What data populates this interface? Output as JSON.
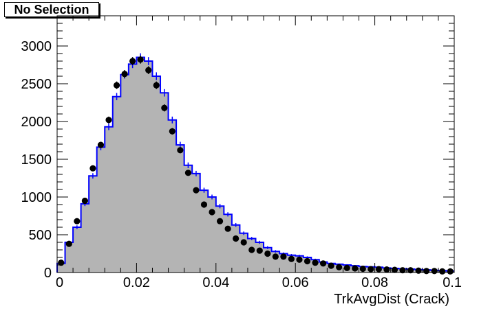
{
  "selection_label": "No Selection",
  "chart_data": {
    "type": "bar",
    "xlabel": "TrkAvgDist (Crack)",
    "ylabel": "",
    "xlim": [
      0,
      0.1
    ],
    "ylim": [
      0,
      3400
    ],
    "x_ticks": [
      0,
      0.02,
      0.04,
      0.06,
      0.08,
      0.1
    ],
    "x_tick_labels": [
      "0",
      "0.02",
      "0.04",
      "0.06",
      "0.08",
      "0.1"
    ],
    "y_ticks": [
      0,
      500,
      1000,
      1500,
      2000,
      2500,
      3000
    ],
    "y_tick_labels": [
      "0",
      "500",
      "1000",
      "1500",
      "2000",
      "2500",
      "3000"
    ],
    "grid": false,
    "bin_width": 0.002,
    "bin_centers": [
      0.001,
      0.003,
      0.005,
      0.007,
      0.009,
      0.011,
      0.013,
      0.015,
      0.017,
      0.019,
      0.021,
      0.023,
      0.025,
      0.027,
      0.029,
      0.031,
      0.033,
      0.035,
      0.037,
      0.039,
      0.041,
      0.043,
      0.045,
      0.047,
      0.049,
      0.051,
      0.053,
      0.055,
      0.057,
      0.059,
      0.061,
      0.063,
      0.065,
      0.067,
      0.069,
      0.071,
      0.073,
      0.075,
      0.077,
      0.079,
      0.081,
      0.083,
      0.085,
      0.087,
      0.089,
      0.091,
      0.093,
      0.095,
      0.097,
      0.099
    ],
    "series": [
      {
        "style": "filled-histogram",
        "fill_color": "#b4b4b4",
        "line_color": "#0000ff",
        "values": [
          120,
          400,
          600,
          910,
          1280,
          1660,
          1930,
          2330,
          2620,
          2760,
          2850,
          2800,
          2600,
          2380,
          2020,
          1690,
          1420,
          1310,
          1090,
          1000,
          880,
          770,
          630,
          520,
          450,
          400,
          330,
          280,
          250,
          230,
          220,
          200,
          170,
          140,
          120,
          110,
          100,
          90,
          80,
          75,
          70,
          60,
          55,
          50,
          45,
          40,
          35,
          30,
          25,
          20
        ]
      },
      {
        "style": "markers",
        "marker_color": "#000000",
        "values": [
          130,
          380,
          680,
          950,
          1380,
          1690,
          2020,
          2480,
          2630,
          2800,
          2820,
          2680,
          2480,
          2180,
          1870,
          1620,
          1320,
          1090,
          900,
          800,
          680,
          580,
          450,
          400,
          300,
          290,
          250,
          210,
          210,
          180,
          170,
          150,
          130,
          120,
          90,
          70,
          60,
          55,
          50,
          45,
          45,
          40,
          35,
          30,
          30,
          25,
          20,
          20,
          15,
          15
        ]
      }
    ]
  }
}
